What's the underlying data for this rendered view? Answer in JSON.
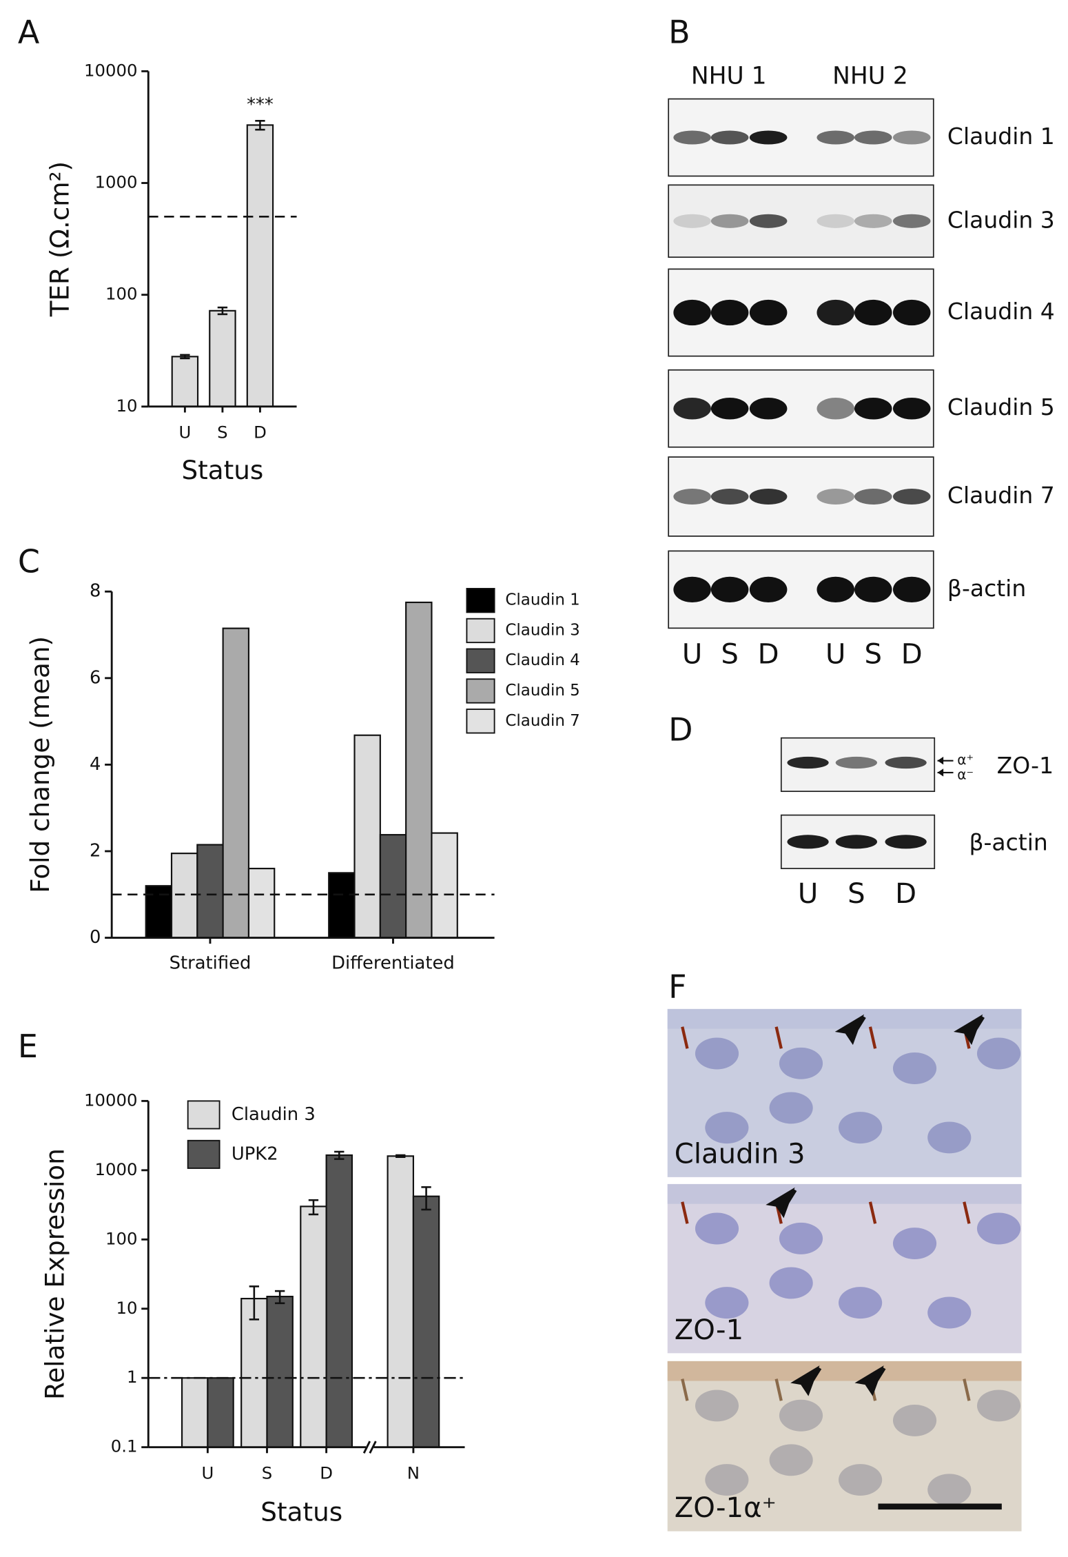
{
  "panel_letters": [
    "A",
    "B",
    "C",
    "D",
    "E",
    "F"
  ],
  "chart_data": [
    {
      "type": "bar",
      "ylabel": "TER (Ω.cm²)",
      "xlabel": "Status",
      "categories": [
        "U",
        "S",
        "D"
      ],
      "values": [
        28,
        72,
        3300
      ],
      "errors": [
        1,
        5,
        300
      ],
      "color": "#dcdcdc",
      "log_scale": true,
      "ylim": [
        10,
        10000
      ],
      "yticks": [
        10,
        100,
        1000,
        10000
      ],
      "reference_line": 500,
      "annotation": {
        "text": "***",
        "x": "D"
      }
    },
    {
      "type": "bar",
      "ylabel": "Fold change (mean)",
      "categories": [
        "Stratified",
        "Differentiated"
      ],
      "series": [
        {
          "name": "Claudin 1",
          "color": "#000000",
          "values": [
            1.2,
            1.5
          ]
        },
        {
          "name": "Claudin 3",
          "color": "#dcdcdc",
          "values": [
            1.95,
            4.68
          ]
        },
        {
          "name": "Claudin 4",
          "color": "#555555",
          "values": [
            2.15,
            2.38
          ]
        },
        {
          "name": "Claudin 5",
          "color": "#aaaaaa",
          "values": [
            7.15,
            7.75
          ]
        },
        {
          "name": "Claudin 7",
          "color": "#e2e2e2",
          "values": [
            1.6,
            2.42
          ]
        }
      ],
      "ylim": [
        0,
        8
      ],
      "yticks": [
        0,
        2,
        4,
        6,
        8
      ],
      "reference_line": 1
    },
    {
      "type": "bar",
      "ylabel": "Relative Expression",
      "xlabel": "Status",
      "categories": [
        "U",
        "S",
        "D",
        "N"
      ],
      "series": [
        {
          "name": "Claudin 3",
          "color": "#dcdcdc",
          "values": [
            1,
            14,
            300,
            1600
          ],
          "errors": [
            null,
            7,
            70,
            50
          ]
        },
        {
          "name": "UPK2",
          "color": "#555555",
          "values": [
            1,
            15,
            1650,
            420
          ],
          "errors": [
            null,
            3,
            200,
            150
          ]
        }
      ],
      "log_scale": true,
      "ylim": [
        0.1,
        10000
      ],
      "yticks": [
        0.1,
        1,
        10,
        100,
        1000,
        10000
      ],
      "reference_line": 1,
      "axis_break": true
    }
  ],
  "blot_b": {
    "groups": [
      "NHU 1",
      "NHU 2"
    ],
    "rows": [
      "Claudin 1",
      "Claudin 3",
      "Claudin 4",
      "Claudin 5",
      "Claudin 7",
      "β-actin"
    ],
    "lanes": [
      "U",
      "S",
      "D",
      "U",
      "S",
      "D"
    ]
  },
  "blot_d": {
    "rows": [
      "ZO-1",
      "β-actin"
    ],
    "isoforms": [
      "α⁺",
      "α⁻"
    ],
    "lanes": [
      "U",
      "S",
      "D"
    ]
  },
  "micrographs": {
    "labels": [
      "Claudin 3",
      "ZO-1",
      "ZO-1α⁺"
    ]
  }
}
